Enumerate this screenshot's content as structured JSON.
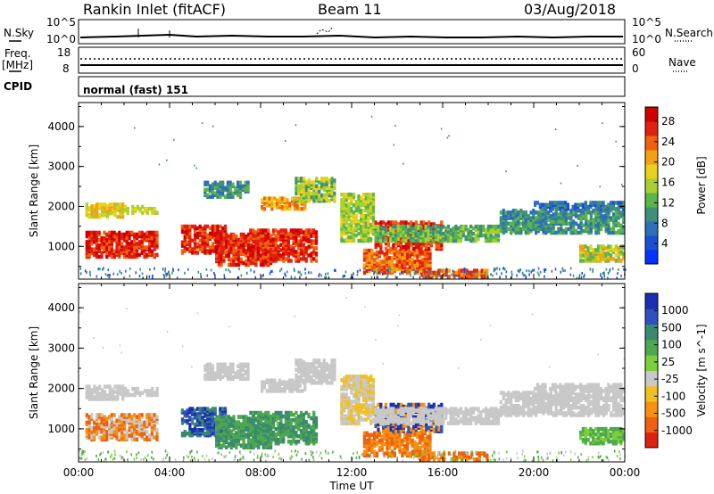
{
  "header": {
    "title": "Rankin Inlet (fitACF)",
    "beam": "Beam 11",
    "date": "03/Aug/2018"
  },
  "strip_labels": {
    "nsky": "N.Sky",
    "nsky_tick_hi": "10^5",
    "nsky_tick_lo": "10^0",
    "nsearch": "N.Search",
    "nsearch_tick_hi": "10^5",
    "nsearch_tick_lo": "10^0",
    "freq": "Freq.",
    "freq_unit": "[MHz]",
    "freq_tick_hi": "18",
    "freq_tick_lo": "8",
    "nave": "Nave",
    "nave_tick_hi": "60",
    "nave_tick_lo": "0",
    "cpid": "CPID",
    "mode": "normal (fast) 151"
  },
  "chart_data": [
    {
      "type": "heatmap",
      "name": "power",
      "ylabel": "Slant Range [km]",
      "yticks": [
        "1000",
        "2000",
        "3000",
        "4000"
      ],
      "ylim": [
        180,
        4600
      ],
      "colorbar_label": "Power [dB]",
      "colorbar_ticks": [
        "4",
        "8",
        "12",
        "16",
        "20",
        "24",
        "28"
      ],
      "colorbar_colors": [
        "#0033ff",
        "#1a4fd0",
        "#2d6fb8",
        "#3f8f7a",
        "#5ab54a",
        "#a8d030",
        "#e8d020",
        "#f5a010",
        "#f06010",
        "#e02010",
        "#d00000"
      ],
      "xticks": [
        "00:00",
        "04:00",
        "08:00",
        "12:00",
        "16:00",
        "20:00",
        "00:00"
      ]
    },
    {
      "type": "heatmap",
      "name": "velocity",
      "ylabel": "Slant Range [km]",
      "yticks": [
        "1000",
        "2000",
        "3000",
        "4000"
      ],
      "ylim": [
        180,
        4600
      ],
      "colorbar_label": "Velocity [m s^-1]",
      "colorbar_ticks": [
        "1000",
        "500",
        "100",
        "25",
        "-25",
        "-100",
        "-500",
        "-1000"
      ],
      "colorbar_colors": [
        "#1a2fb0",
        "#3050c0",
        "#3a8a70",
        "#4ea84e",
        "#7bcf3a",
        "#c8c8c8",
        "#f0c020",
        "#f59010",
        "#f06010",
        "#e02010"
      ],
      "xticks": [
        "00:00",
        "04:00",
        "08:00",
        "12:00",
        "16:00",
        "20:00",
        "00:00"
      ],
      "xlabel": "Time UT"
    }
  ]
}
